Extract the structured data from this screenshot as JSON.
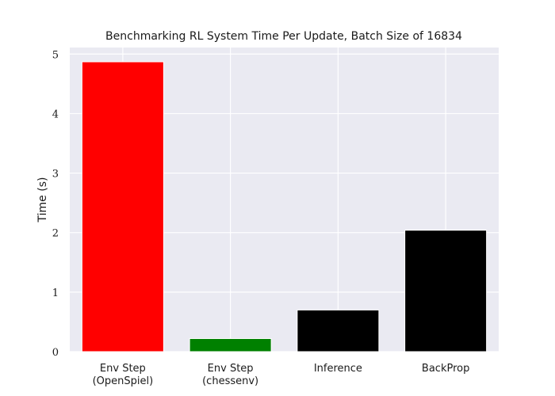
{
  "chart_data": {
    "type": "bar",
    "title": "Benchmarking RL System Time Per Update, Batch Size of 16834",
    "xlabel": "",
    "ylabel": "Time (s)",
    "categories": [
      [
        "Env Step",
        "(OpenSpiel)"
      ],
      [
        "Env Step",
        "(chessenv)"
      ],
      [
        "Inference"
      ],
      [
        "BackProp"
      ]
    ],
    "values": [
      4.87,
      0.22,
      0.7,
      2.04
    ],
    "bar_colors": [
      "#ff0000",
      "#008000",
      "#000000",
      "#000000"
    ],
    "ylim": [
      0,
      5.11
    ],
    "yticks": [
      0,
      1,
      2,
      3,
      4,
      5
    ],
    "grid": true,
    "plot_background": "#eaeaf2",
    "grid_color": "#ffffff"
  }
}
